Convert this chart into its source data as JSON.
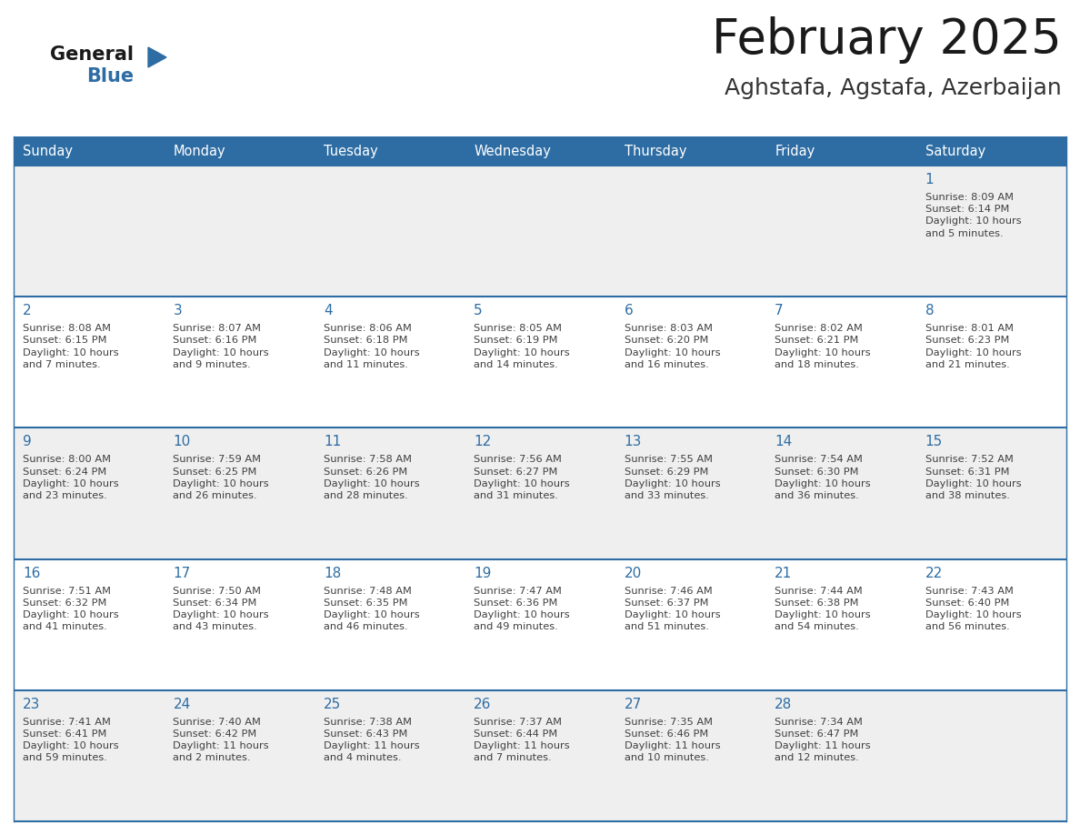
{
  "title": "February 2025",
  "subtitle": "Aghstafa, Agstafa, Azerbaijan",
  "days_of_week": [
    "Sunday",
    "Monday",
    "Tuesday",
    "Wednesday",
    "Thursday",
    "Friday",
    "Saturday"
  ],
  "header_bg": "#2E6DA4",
  "header_text": "#FFFFFF",
  "row_bg": [
    "#EFEFEF",
    "#FFFFFF",
    "#EFEFEF",
    "#FFFFFF",
    "#EFEFEF"
  ],
  "border_color": "#2E6DA4",
  "day_number_color": "#2E6DA4",
  "cell_text_color": "#404040",
  "title_color": "#1a1a1a",
  "subtitle_color": "#333333",
  "logo_general_color": "#1a1a1a",
  "logo_blue_color": "#2E6DA4",
  "calendar_data": [
    [
      "",
      "",
      "",
      "",
      "",
      "",
      "1\nSunrise: 8:09 AM\nSunset: 6:14 PM\nDaylight: 10 hours\nand 5 minutes."
    ],
    [
      "2\nSunrise: 8:08 AM\nSunset: 6:15 PM\nDaylight: 10 hours\nand 7 minutes.",
      "3\nSunrise: 8:07 AM\nSunset: 6:16 PM\nDaylight: 10 hours\nand 9 minutes.",
      "4\nSunrise: 8:06 AM\nSunset: 6:18 PM\nDaylight: 10 hours\nand 11 minutes.",
      "5\nSunrise: 8:05 AM\nSunset: 6:19 PM\nDaylight: 10 hours\nand 14 minutes.",
      "6\nSunrise: 8:03 AM\nSunset: 6:20 PM\nDaylight: 10 hours\nand 16 minutes.",
      "7\nSunrise: 8:02 AM\nSunset: 6:21 PM\nDaylight: 10 hours\nand 18 minutes.",
      "8\nSunrise: 8:01 AM\nSunset: 6:23 PM\nDaylight: 10 hours\nand 21 minutes."
    ],
    [
      "9\nSunrise: 8:00 AM\nSunset: 6:24 PM\nDaylight: 10 hours\nand 23 minutes.",
      "10\nSunrise: 7:59 AM\nSunset: 6:25 PM\nDaylight: 10 hours\nand 26 minutes.",
      "11\nSunrise: 7:58 AM\nSunset: 6:26 PM\nDaylight: 10 hours\nand 28 minutes.",
      "12\nSunrise: 7:56 AM\nSunset: 6:27 PM\nDaylight: 10 hours\nand 31 minutes.",
      "13\nSunrise: 7:55 AM\nSunset: 6:29 PM\nDaylight: 10 hours\nand 33 minutes.",
      "14\nSunrise: 7:54 AM\nSunset: 6:30 PM\nDaylight: 10 hours\nand 36 minutes.",
      "15\nSunrise: 7:52 AM\nSunset: 6:31 PM\nDaylight: 10 hours\nand 38 minutes."
    ],
    [
      "16\nSunrise: 7:51 AM\nSunset: 6:32 PM\nDaylight: 10 hours\nand 41 minutes.",
      "17\nSunrise: 7:50 AM\nSunset: 6:34 PM\nDaylight: 10 hours\nand 43 minutes.",
      "18\nSunrise: 7:48 AM\nSunset: 6:35 PM\nDaylight: 10 hours\nand 46 minutes.",
      "19\nSunrise: 7:47 AM\nSunset: 6:36 PM\nDaylight: 10 hours\nand 49 minutes.",
      "20\nSunrise: 7:46 AM\nSunset: 6:37 PM\nDaylight: 10 hours\nand 51 minutes.",
      "21\nSunrise: 7:44 AM\nSunset: 6:38 PM\nDaylight: 10 hours\nand 54 minutes.",
      "22\nSunrise: 7:43 AM\nSunset: 6:40 PM\nDaylight: 10 hours\nand 56 minutes."
    ],
    [
      "23\nSunrise: 7:41 AM\nSunset: 6:41 PM\nDaylight: 10 hours\nand 59 minutes.",
      "24\nSunrise: 7:40 AM\nSunset: 6:42 PM\nDaylight: 11 hours\nand 2 minutes.",
      "25\nSunrise: 7:38 AM\nSunset: 6:43 PM\nDaylight: 11 hours\nand 4 minutes.",
      "26\nSunrise: 7:37 AM\nSunset: 6:44 PM\nDaylight: 11 hours\nand 7 minutes.",
      "27\nSunrise: 7:35 AM\nSunset: 6:46 PM\nDaylight: 11 hours\nand 10 minutes.",
      "28\nSunrise: 7:34 AM\nSunset: 6:47 PM\nDaylight: 11 hours\nand 12 minutes.",
      ""
    ]
  ]
}
